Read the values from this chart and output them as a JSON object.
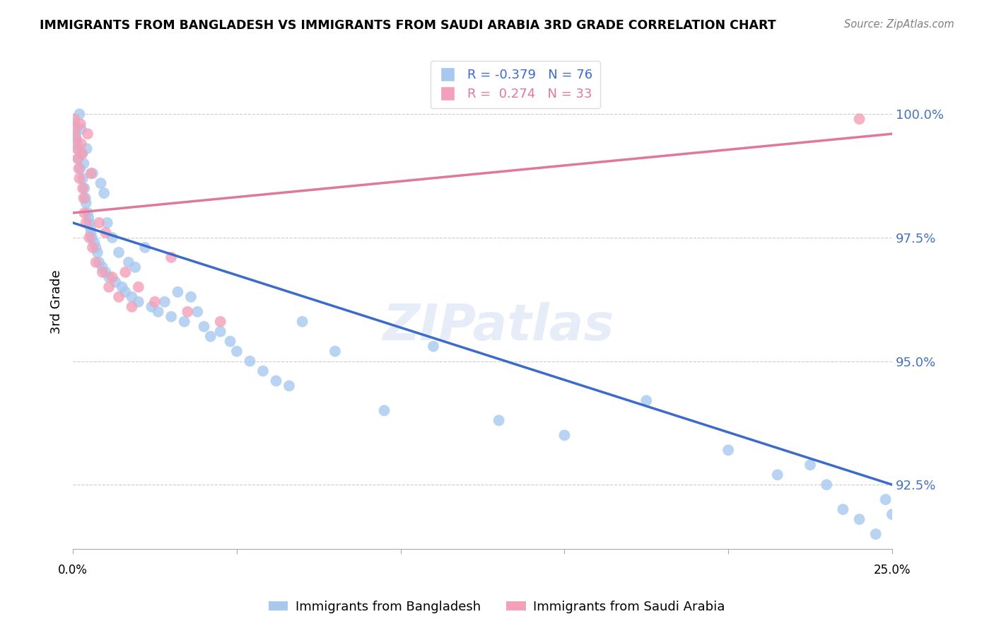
{
  "title": "IMMIGRANTS FROM BANGLADESH VS IMMIGRANTS FROM SAUDI ARABIA 3RD GRADE CORRELATION CHART",
  "source": "Source: ZipAtlas.com",
  "ylabel": "3rd Grade",
  "y_ticks": [
    92.5,
    95.0,
    97.5,
    100.0
  ],
  "y_tick_labels": [
    "92.5%",
    "95.0%",
    "97.5%",
    "100.0%"
  ],
  "x_min": 0.0,
  "x_max": 25.0,
  "y_min": 91.2,
  "y_max": 101.2,
  "r_blue": -0.379,
  "n_blue": 76,
  "r_pink": 0.274,
  "n_pink": 33,
  "legend_blue": "Immigrants from Bangladesh",
  "legend_pink": "Immigrants from Saudi Arabia",
  "blue_color": "#A8C8F0",
  "pink_color": "#F4A0B8",
  "blue_line_color": "#3B6CC9",
  "pink_line_color": "#E07898",
  "watermark": "ZIPatlas",
  "blue_line_x0": 0.0,
  "blue_line_y0": 97.8,
  "blue_line_x1": 25.0,
  "blue_line_y1": 92.5,
  "pink_line_x0": 0.0,
  "pink_line_y0": 98.0,
  "pink_line_x1": 25.0,
  "pink_line_y1": 99.6,
  "blue_x": [
    0.05,
    0.08,
    0.1,
    0.12,
    0.15,
    0.17,
    0.2,
    0.22,
    0.25,
    0.28,
    0.3,
    0.33,
    0.35,
    0.38,
    0.4,
    0.42,
    0.45,
    0.48,
    0.5,
    0.53,
    0.55,
    0.58,
    0.6,
    0.65,
    0.7,
    0.75,
    0.8,
    0.85,
    0.9,
    0.95,
    1.0,
    1.05,
    1.1,
    1.2,
    1.3,
    1.4,
    1.5,
    1.6,
    1.7,
    1.8,
    1.9,
    2.0,
    2.2,
    2.4,
    2.6,
    2.8,
    3.0,
    3.2,
    3.4,
    3.6,
    3.8,
    4.0,
    4.2,
    4.5,
    4.8,
    5.0,
    5.4,
    5.8,
    6.2,
    6.6,
    7.0,
    8.0,
    9.5,
    11.0,
    13.0,
    15.0,
    17.5,
    20.0,
    21.5,
    22.5,
    23.0,
    24.0,
    24.5,
    25.0,
    24.8,
    23.5
  ],
  "blue_y": [
    99.8,
    99.6,
    99.5,
    99.4,
    99.3,
    99.1,
    100.0,
    98.9,
    99.7,
    99.2,
    98.7,
    99.0,
    98.5,
    98.3,
    98.2,
    99.3,
    98.0,
    97.9,
    97.8,
    97.7,
    97.6,
    97.5,
    98.8,
    97.4,
    97.3,
    97.2,
    97.0,
    98.6,
    96.9,
    98.4,
    96.8,
    97.8,
    96.7,
    97.5,
    96.6,
    97.2,
    96.5,
    96.4,
    97.0,
    96.3,
    96.9,
    96.2,
    97.3,
    96.1,
    96.0,
    96.2,
    95.9,
    96.4,
    95.8,
    96.3,
    96.0,
    95.7,
    95.5,
    95.6,
    95.4,
    95.2,
    95.0,
    94.8,
    94.6,
    94.5,
    95.8,
    95.2,
    94.0,
    95.3,
    93.8,
    93.5,
    94.2,
    93.2,
    92.7,
    92.9,
    92.5,
    91.8,
    91.5,
    91.9,
    92.2,
    92.0
  ],
  "pink_x": [
    0.05,
    0.08,
    0.1,
    0.13,
    0.15,
    0.18,
    0.2,
    0.23,
    0.25,
    0.28,
    0.3,
    0.33,
    0.35,
    0.4,
    0.45,
    0.5,
    0.55,
    0.6,
    0.7,
    0.8,
    0.9,
    1.0,
    1.1,
    1.2,
    1.4,
    1.6,
    1.8,
    2.0,
    2.5,
    3.0,
    3.5,
    4.5,
    24.0
  ],
  "pink_y": [
    99.9,
    99.7,
    99.5,
    99.3,
    99.1,
    98.9,
    98.7,
    99.8,
    99.4,
    99.2,
    98.5,
    98.3,
    98.0,
    97.8,
    99.6,
    97.5,
    98.8,
    97.3,
    97.0,
    97.8,
    96.8,
    97.6,
    96.5,
    96.7,
    96.3,
    96.8,
    96.1,
    96.5,
    96.2,
    97.1,
    96.0,
    95.8,
    99.9
  ]
}
